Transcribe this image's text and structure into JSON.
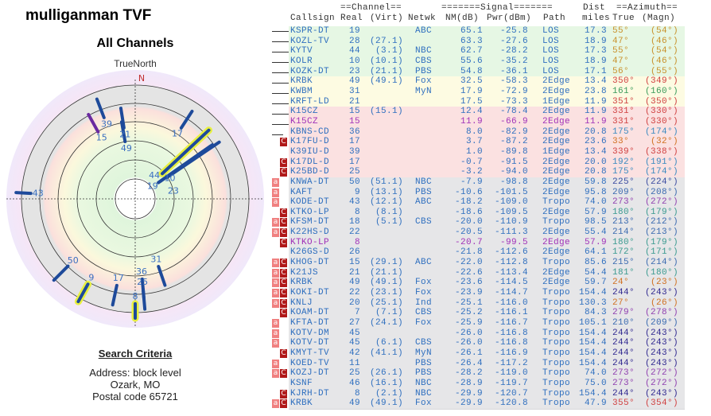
{
  "app_title": "mulliganman TVF",
  "chart_title": "All Channels",
  "polar": {
    "top_label": "TrueNorth",
    "north": "N"
  },
  "criteria": {
    "heading": "Search Criteria",
    "lines": [
      "Address: block level",
      "Ozark, MO",
      "Postal code 65721"
    ]
  },
  "header": {
    "group_channel": "==Channel==",
    "group_signal": "=======Signal=======",
    "dist_top": "Dist",
    "group_azimuth": "==Azimuth==",
    "cols": [
      "Callsign",
      "Real",
      "(Virt)",
      "Netwk",
      "NM(dB)",
      "Pwr(dBm)",
      "Path",
      "miles",
      "True",
      "(Magn)"
    ]
  },
  "colors": {
    "text": "#2f6fbf",
    "alt_text": "#a030b8",
    "los_bg": "#e6f7e4",
    "edge1_bg": "#fdfbe2",
    "weak_bg": "#fbe1e1",
    "tropo_bg": "#e6e6e8",
    "badge_a": "#f08080",
    "badge_c": "#b01818"
  },
  "rows": [
    {
      "call": "KSPR-DT",
      "real": "19",
      "virt": "",
      "net": "ABC",
      "nm": "65.1",
      "pwr": "-25.8",
      "path": "LOS",
      "dist": "17.3",
      "true": "55°",
      "magn": "(54°)",
      "azc": "#c8902a",
      "bg": "los",
      "badges": ""
    },
    {
      "call": "KOZL-TV",
      "real": "28",
      "virt": "(27.1)",
      "net": "",
      "nm": "63.3",
      "pwr": "-27.6",
      "path": "LOS",
      "dist": "18.9",
      "true": "47°",
      "magn": "(46°)",
      "azc": "#c8902a",
      "bg": "los",
      "badges": ""
    },
    {
      "call": "KYTV",
      "real": "44",
      "virt": "(3.1)",
      "net": "NBC",
      "nm": "62.7",
      "pwr": "-28.2",
      "path": "LOS",
      "dist": "17.3",
      "true": "55°",
      "magn": "(54°)",
      "azc": "#c8902a",
      "bg": "los",
      "badges": ""
    },
    {
      "call": "KOLR",
      "real": "10",
      "virt": "(10.1)",
      "net": "CBS",
      "nm": "55.6",
      "pwr": "-35.2",
      "path": "LOS",
      "dist": "18.9",
      "true": "47°",
      "magn": "(46°)",
      "azc": "#c8902a",
      "bg": "los",
      "badges": ""
    },
    {
      "call": "KOZK-DT",
      "real": "23",
      "virt": "(21.1)",
      "net": "PBS",
      "nm": "54.8",
      "pwr": "-36.1",
      "path": "LOS",
      "dist": "17.1",
      "true": "56°",
      "magn": "(55°)",
      "azc": "#c8902a",
      "bg": "los",
      "badges": ""
    },
    {
      "call": "KRBK",
      "real": "49",
      "virt": "(49.1)",
      "net": "Fox",
      "nm": "32.5",
      "pwr": "-58.3",
      "path": "2Edge",
      "dist": "13.4",
      "true": "350°",
      "magn": "(349°)",
      "azc": "#d04040",
      "bg": "edge1",
      "badges": ""
    },
    {
      "call": "KWBM",
      "real": "31",
      "virt": "",
      "net": "MyN",
      "nm": "17.9",
      "pwr": "-72.9",
      "path": "2Edge",
      "dist": "23.8",
      "true": "161°",
      "magn": "(160°)",
      "azc": "#3a9a5a",
      "bg": "edge1",
      "badges": ""
    },
    {
      "call": "KRFT-LD",
      "real": "21",
      "virt": "",
      "net": "",
      "nm": "17.5",
      "pwr": "-73.3",
      "path": "1Edge",
      "dist": "11.9",
      "true": "351°",
      "magn": "(350°)",
      "azc": "#d04040",
      "bg": "edge1",
      "badges": ""
    },
    {
      "call": "K15CZ",
      "real": "15",
      "virt": "(15.1)",
      "net": "",
      "nm": "12.4",
      "pwr": "-78.4",
      "path": "2Edge",
      "dist": "11.9",
      "true": "331°",
      "magn": "(330°)",
      "azc": "#d04040",
      "bg": "weak",
      "badges": ""
    },
    {
      "call": "K15CZ",
      "real": "15",
      "virt": "",
      "net": "",
      "nm": "11.9",
      "pwr": "-66.9",
      "path": "2Edge",
      "dist": "11.9",
      "true": "331°",
      "magn": "(330°)",
      "azc": "#d04040",
      "bg": "weak",
      "badges": "",
      "alt": true
    },
    {
      "call": "KBNS-CD",
      "real": "36",
      "virt": "",
      "net": "",
      "nm": "8.0",
      "pwr": "-82.9",
      "path": "2Edge",
      "dist": "20.8",
      "true": "175°",
      "magn": "(174°)",
      "azc": "#3a8ac0",
      "bg": "weak",
      "badges": ""
    },
    {
      "call": "K17FU-D",
      "real": "17",
      "virt": "",
      "net": "",
      "nm": "3.7",
      "pwr": "-87.2",
      "path": "2Edge",
      "dist": "23.6",
      "true": "33°",
      "magn": "(32°)",
      "azc": "#d07020",
      "bg": "weak",
      "badges": "C"
    },
    {
      "call": "K39IU-D",
      "real": "39",
      "virt": "",
      "net": "",
      "nm": "1.0",
      "pwr": "-89.8",
      "path": "1Edge",
      "dist": "13.4",
      "true": "339°",
      "magn": "(338°)",
      "azc": "#d04040",
      "bg": "weak",
      "badges": ""
    },
    {
      "call": "K17DL-D",
      "real": "17",
      "virt": "",
      "net": "",
      "nm": "-0.7",
      "pwr": "-91.5",
      "path": "2Edge",
      "dist": "20.0",
      "true": "192°",
      "magn": "(191°)",
      "azc": "#3a8ac0",
      "bg": "weak",
      "badges": "C"
    },
    {
      "call": "K25BD-D",
      "real": "25",
      "virt": "",
      "net": "",
      "nm": "-3.2",
      "pwr": "-94.0",
      "path": "2Edge",
      "dist": "20.8",
      "true": "175°",
      "magn": "(174°)",
      "azc": "#3a8ac0",
      "bg": "weak",
      "badges": "C"
    },
    {
      "call": "KNWA-DT",
      "real": "50",
      "virt": "(51.1)",
      "net": "NBC",
      "nm": "-7.9",
      "pwr": "-98.8",
      "path": "2Edge",
      "dist": "59.8",
      "true": "225°",
      "magn": "(224°)",
      "azc": "#3a4aa0",
      "bg": "tropo",
      "badges": "a"
    },
    {
      "call": "KAFT",
      "real": "9",
      "virt": "(13.1)",
      "net": "PBS",
      "nm": "-10.6",
      "pwr": "-101.5",
      "path": "2Edge",
      "dist": "95.8",
      "true": "209°",
      "magn": "(208°)",
      "azc": "#3a6ab0",
      "bg": "tropo",
      "badges": "a"
    },
    {
      "call": "KODE-DT",
      "real": "43",
      "virt": "(12.1)",
      "net": "ABC",
      "nm": "-18.2",
      "pwr": "-109.0",
      "path": "Tropo",
      "dist": "74.0",
      "true": "273°",
      "magn": "(272°)",
      "azc": "#9040b0",
      "bg": "tropo",
      "badges": "a"
    },
    {
      "call": "KTKO-LP",
      "real": "8",
      "virt": "(8.1)",
      "net": "",
      "nm": "-18.6",
      "pwr": "-109.5",
      "path": "2Edge",
      "dist": "57.9",
      "true": "180°",
      "magn": "(179°)",
      "azc": "#3a9a90",
      "bg": "tropo",
      "badges": "C"
    },
    {
      "call": "KFSM-DT",
      "real": "18",
      "virt": "(5.1)",
      "net": "CBS",
      "nm": "-20.0",
      "pwr": "-110.9",
      "path": "Tropo",
      "dist": "98.5",
      "true": "213°",
      "magn": "(212°)",
      "azc": "#3a6ab0",
      "bg": "tropo",
      "badges": "aC"
    },
    {
      "call": "K22HS-D",
      "real": "22",
      "virt": "",
      "net": "",
      "nm": "-20.5",
      "pwr": "-111.3",
      "path": "2Edge",
      "dist": "55.4",
      "true": "214°",
      "magn": "(213°)",
      "azc": "#3a6ab0",
      "bg": "tropo",
      "badges": "aC"
    },
    {
      "call": "KTKO-LP",
      "real": "8",
      "virt": "",
      "net": "",
      "nm": "-20.7",
      "pwr": "-99.5",
      "path": "2Edge",
      "dist": "57.9",
      "true": "180°",
      "magn": "(179°)",
      "azc": "#3a9a90",
      "bg": "tropo",
      "badges": "C",
      "alt": true
    },
    {
      "call": "K26GS-D",
      "real": "26",
      "virt": "",
      "net": "",
      "nm": "-21.8",
      "pwr": "-112.6",
      "path": "2Edge",
      "dist": "64.1",
      "true": "172°",
      "magn": "(171°)",
      "azc": "#3a9a90",
      "bg": "tropo",
      "badges": ""
    },
    {
      "call": "KHOG-DT",
      "real": "15",
      "virt": "(29.1)",
      "net": "ABC",
      "nm": "-22.0",
      "pwr": "-112.8",
      "path": "Tropo",
      "dist": "85.6",
      "true": "215°",
      "magn": "(214°)",
      "azc": "#3a6ab0",
      "bg": "tropo",
      "badges": "aC"
    },
    {
      "call": "K21JS",
      "real": "21",
      "virt": "(21.1)",
      "net": "",
      "nm": "-22.6",
      "pwr": "-113.4",
      "path": "2Edge",
      "dist": "54.4",
      "true": "181°",
      "magn": "(180°)",
      "azc": "#3a9a90",
      "bg": "tropo",
      "badges": "aC"
    },
    {
      "call": "KRBK",
      "real": "49",
      "virt": "(49.1)",
      "net": "Fox",
      "nm": "-23.6",
      "pwr": "-114.5",
      "path": "2Edge",
      "dist": "59.7",
      "true": "24°",
      "magn": "(23°)",
      "azc": "#d07020",
      "bg": "tropo",
      "badges": "aC"
    },
    {
      "call": "KOKI-DT",
      "real": "22",
      "virt": "(23.1)",
      "net": "Fox",
      "nm": "-23.9",
      "pwr": "-114.7",
      "path": "Tropo",
      "dist": "154.4",
      "true": "244°",
      "magn": "(243°)",
      "azc": "#302890",
      "bg": "tropo",
      "badges": "aC"
    },
    {
      "call": "KNLJ",
      "real": "20",
      "virt": "(25.1)",
      "net": "Ind",
      "nm": "-25.1",
      "pwr": "-116.0",
      "path": "Tropo",
      "dist": "130.3",
      "true": "27°",
      "magn": "(26°)",
      "azc": "#d07020",
      "bg": "tropo",
      "badges": "aC"
    },
    {
      "call": "KOAM-DT",
      "real": "7",
      "virt": "(7.1)",
      "net": "CBS",
      "nm": "-25.2",
      "pwr": "-116.1",
      "path": "Tropo",
      "dist": "84.3",
      "true": "279°",
      "magn": "(278°)",
      "azc": "#9040b0",
      "bg": "tropo",
      "badges": "C"
    },
    {
      "call": "KFTA-DT",
      "real": "27",
      "virt": "(24.1)",
      "net": "Fox",
      "nm": "-25.9",
      "pwr": "-116.7",
      "path": "Tropo",
      "dist": "105.1",
      "true": "210°",
      "magn": "(209°)",
      "azc": "#3a6ab0",
      "bg": "tropo",
      "badges": "a"
    },
    {
      "call": "KOTV-DM",
      "real": "45",
      "virt": "",
      "net": "",
      "nm": "-26.0",
      "pwr": "-116.8",
      "path": "Tropo",
      "dist": "154.4",
      "true": "244°",
      "magn": "(243°)",
      "azc": "#302890",
      "bg": "tropo",
      "badges": "a"
    },
    {
      "call": "KOTV-DT",
      "real": "45",
      "virt": "(6.1)",
      "net": "CBS",
      "nm": "-26.0",
      "pwr": "-116.8",
      "path": "Tropo",
      "dist": "154.4",
      "true": "244°",
      "magn": "(243°)",
      "azc": "#302890",
      "bg": "tropo",
      "badges": "a"
    },
    {
      "call": "KMYT-TV",
      "real": "42",
      "virt": "(41.1)",
      "net": "MyN",
      "nm": "-26.1",
      "pwr": "-116.9",
      "path": "Tropo",
      "dist": "154.4",
      "true": "244°",
      "magn": "(243°)",
      "azc": "#302890",
      "bg": "tropo",
      "badges": "C"
    },
    {
      "call": "KOED-TV",
      "real": "11",
      "virt": "",
      "net": "PBS",
      "nm": "-26.4",
      "pwr": "-117.2",
      "path": "Tropo",
      "dist": "154.4",
      "true": "244°",
      "magn": "(243°)",
      "azc": "#302890",
      "bg": "tropo",
      "badges": "a"
    },
    {
      "call": "KOZJ-DT",
      "real": "25",
      "virt": "(26.1)",
      "net": "PBS",
      "nm": "-28.2",
      "pwr": "-119.0",
      "path": "Tropo",
      "dist": "74.0",
      "true": "273°",
      "magn": "(272°)",
      "azc": "#9040b0",
      "bg": "tropo",
      "badges": "aC"
    },
    {
      "call": "KSNF",
      "real": "46",
      "virt": "(16.1)",
      "net": "NBC",
      "nm": "-28.9",
      "pwr": "-119.7",
      "path": "Tropo",
      "dist": "75.0",
      "true": "273°",
      "magn": "(272°)",
      "azc": "#9040b0",
      "bg": "tropo",
      "badges": ""
    },
    {
      "call": "KJRH-DT",
      "real": "8",
      "virt": "(2.1)",
      "net": "NBC",
      "nm": "-29.9",
      "pwr": "-120.7",
      "path": "Tropo",
      "dist": "154.4",
      "true": "244°",
      "magn": "(243°)",
      "azc": "#302890",
      "bg": "tropo",
      "badges": "C"
    },
    {
      "call": "KRBK",
      "real": "49",
      "virt": "(49.1)",
      "net": "Fox",
      "nm": "-29.9",
      "pwr": "-120.8",
      "path": "Tropo",
      "dist": "47.9",
      "true": "355°",
      "magn": "(354°)",
      "azc": "#d04040",
      "bg": "tropo",
      "badges": "aC"
    }
  ],
  "polar_marks": [
    {
      "label": "19",
      "az": 55,
      "nm": 65.1
    },
    {
      "label": "44",
      "az": 55,
      "nm": 62.7
    },
    {
      "label": "10",
      "az": 47,
      "nm": 55.6,
      "hl": true
    },
    {
      "label": "23",
      "az": 56,
      "nm": 54.8
    },
    {
      "label": "49",
      "az": 350,
      "nm": 32.5
    },
    {
      "label": "21",
      "az": 351,
      "nm": 17.5
    },
    {
      "label": "15",
      "az": 331,
      "nm": 12.4
    },
    {
      "label": "39",
      "az": 339,
      "nm": 1.0
    },
    {
      "label": "17",
      "az": 33,
      "nm": 3.7
    },
    {
      "label": "31",
      "az": 161,
      "nm": 17.9
    },
    {
      "label": "36",
      "az": 175,
      "nm": 8.0
    },
    {
      "label": "25",
      "az": 175,
      "nm": -3.2
    },
    {
      "label": "17",
      "az": 192,
      "nm": -0.7
    },
    {
      "label": "50",
      "az": 225,
      "nm": -7.9
    },
    {
      "label": "9",
      "az": 209,
      "nm": -10.6,
      "hl": true
    },
    {
      "label": "8",
      "az": 180,
      "nm": -18.6,
      "hl": true
    },
    {
      "label": "43",
      "az": 273,
      "nm": -18.2
    }
  ]
}
